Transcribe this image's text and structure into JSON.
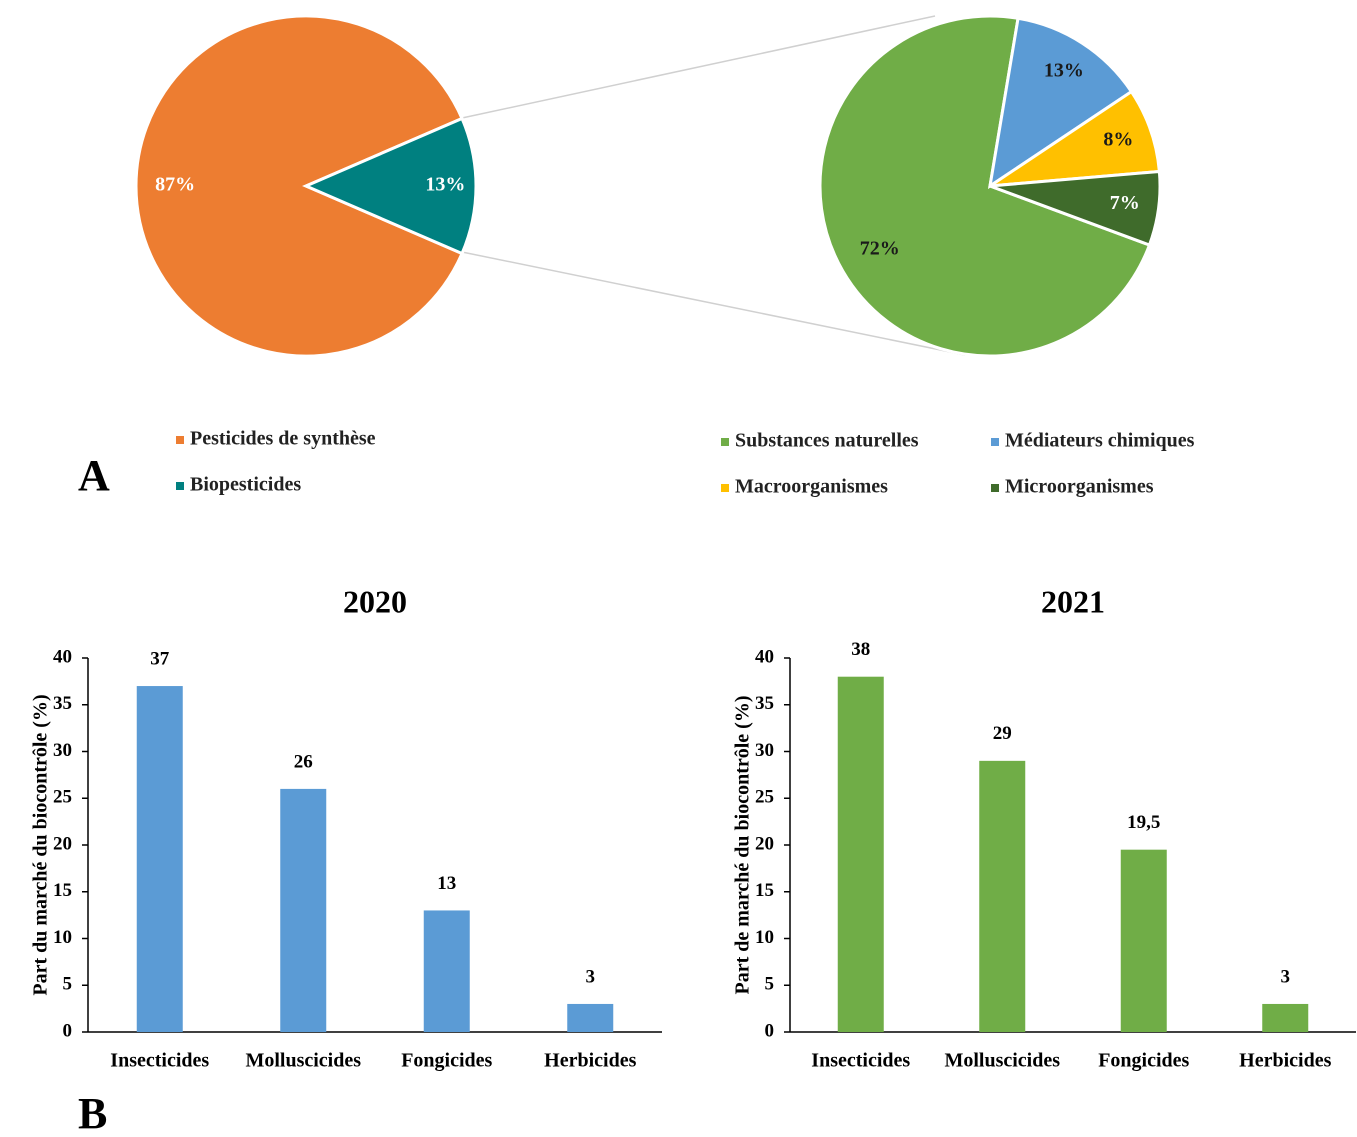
{
  "panel_labels": [
    "A",
    "B"
  ],
  "chart_data": [
    {
      "type": "pie",
      "categories": [
        "Pesticides de synthèse",
        "Biopesticides"
      ],
      "values": [
        87,
        13
      ],
      "value_labels": [
        "87%",
        "13%"
      ],
      "colors": [
        "#ed7d31",
        "#008080"
      ]
    },
    {
      "type": "pie",
      "categories": [
        "Substances naturelles",
        "Médiateurs chimiques",
        "Macroorganismes",
        "Microorganismes"
      ],
      "values": [
        72,
        13,
        8,
        7
      ],
      "value_labels": [
        "72%",
        "13%",
        "8%",
        "7%"
      ],
      "colors": [
        "#70ad47",
        "#5b9bd5",
        "#ffc000",
        "#3f6b2b"
      ]
    },
    {
      "type": "bar",
      "title": "2020",
      "y_label": "Part du marché du biocontrôle (%)",
      "categories": [
        "Insecticides",
        "Molluscicides",
        "Fongicides",
        "Herbicides"
      ],
      "values": [
        37,
        26,
        13,
        3
      ],
      "color": "#5b9bd5",
      "ylim": [
        0,
        40
      ],
      "yticks": [
        0,
        5,
        10,
        15,
        20,
        25,
        30,
        35,
        40
      ]
    },
    {
      "type": "bar",
      "title": "2021",
      "y_label": "Part de marché du biocontrôle (%)",
      "categories": [
        "Insecticides",
        "Molluscicides",
        "Fongicides",
        "Herbicides"
      ],
      "values": [
        38,
        29,
        19.5,
        3
      ],
      "value_labels": [
        "38",
        "29",
        "19,5",
        "3"
      ],
      "color": "#70ad47",
      "ylim": [
        0,
        40
      ],
      "yticks": [
        0,
        5,
        10,
        15,
        20,
        25,
        30,
        35,
        40
      ]
    }
  ]
}
